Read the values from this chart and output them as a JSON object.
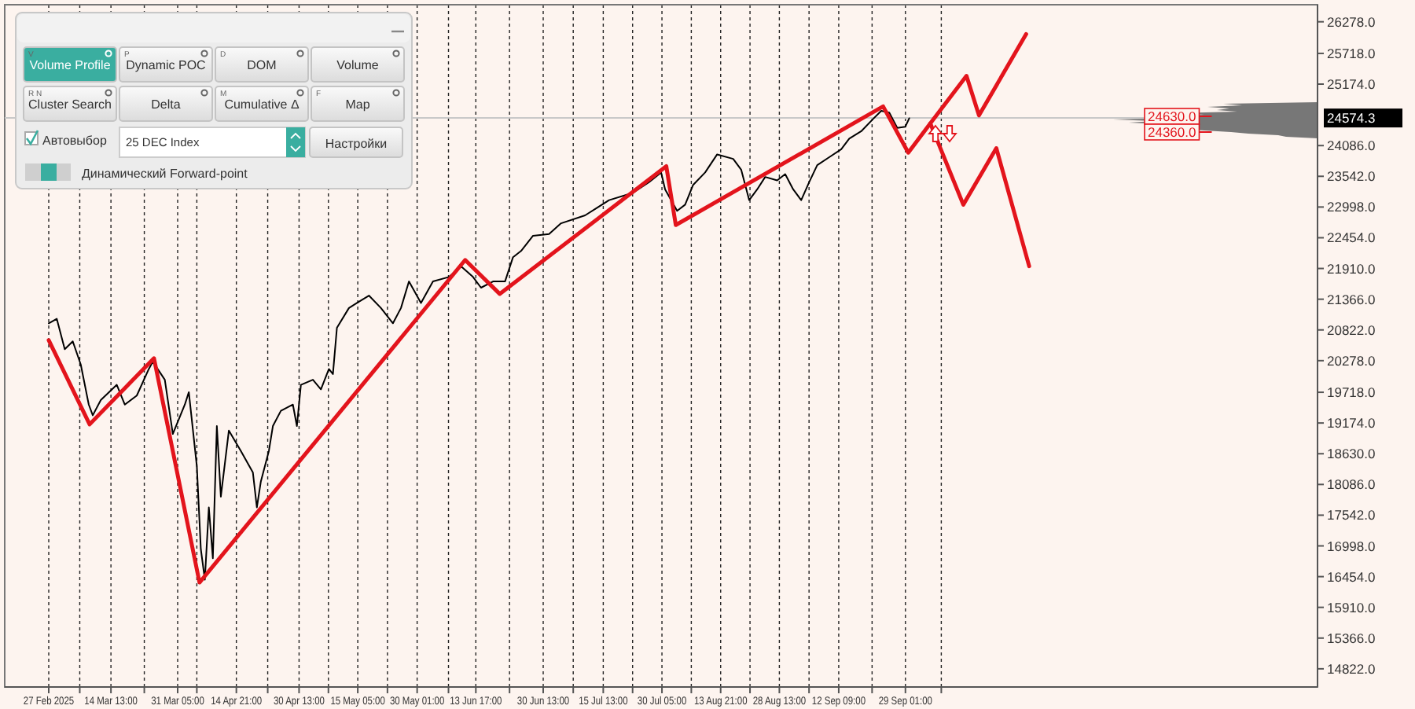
{
  "chart_data": {
    "type": "line",
    "xlim": [
      "2025-02-16",
      "2026-01-10"
    ],
    "ylim": [
      14500,
      26580
    ],
    "xticks": [
      {
        "value": "2025-02-27",
        "label": "27 Feb 2025"
      },
      {
        "value": "2025-03-06T18:00",
        "label": null
      },
      {
        "value": "2025-03-14T13:00",
        "label": "14 Mar 13:00"
      },
      {
        "value": "2025-03-22T21:00",
        "label": null
      },
      {
        "value": "2025-03-31T05:00",
        "label": "31 Mar 05:00"
      },
      {
        "value": "2025-04-05T00:00",
        "label": null
      },
      {
        "value": "2025-04-14T21:00",
        "label": "14 Apr 21:00"
      },
      {
        "value": "2025-04-22T17:00",
        "label": null
      },
      {
        "value": "2025-04-30T13:00",
        "label": "30 Apr 13:00"
      },
      {
        "value": "2025-05-07T21:00",
        "label": null
      },
      {
        "value": "2025-05-15T05:00",
        "label": "15 May 05:00"
      },
      {
        "value": "2025-05-22T15:00",
        "label": null
      },
      {
        "value": "2025-05-30T01:00",
        "label": "30 May 01:00"
      },
      {
        "value": "2025-06-06T21:00",
        "label": null
      },
      {
        "value": "2025-06-13T17:00",
        "label": "13 Jun 17:00"
      },
      {
        "value": "2025-06-22T03:00",
        "label": null
      },
      {
        "value": "2025-06-30T13:00",
        "label": "30 Jun 13:00"
      },
      {
        "value": "2025-07-08T01:00",
        "label": null
      },
      {
        "value": "2025-07-15T13:00",
        "label": "15 Jul 13:00"
      },
      {
        "value": "2025-07-22T21:00",
        "label": null
      },
      {
        "value": "2025-07-30T05:00",
        "label": "30 Jul 05:00"
      },
      {
        "value": "2025-08-06T13:00",
        "label": null
      },
      {
        "value": "2025-08-13T21:00",
        "label": "13 Aug 21:00"
      },
      {
        "value": "2025-08-21T05:00",
        "label": null
      },
      {
        "value": "2025-08-28T13:00",
        "label": "28 Aug 13:00"
      },
      {
        "value": "2025-09-04T23:00",
        "label": null
      },
      {
        "value": "2025-09-12T09:00",
        "label": "12 Sep 09:00"
      },
      {
        "value": "2025-09-20T17:00",
        "label": null
      },
      {
        "value": "2025-09-29T01:00",
        "label": "29 Sep 01:00"
      },
      {
        "value": "2025-10-08",
        "label": null
      }
    ],
    "yticks": [
      {
        "value": 14822,
        "label": "14822.0"
      },
      {
        "value": 15366,
        "label": "15366.0"
      },
      {
        "value": 15910,
        "label": "15910.0"
      },
      {
        "value": 16454,
        "label": "16454.0"
      },
      {
        "value": 16998,
        "label": "16998.0"
      },
      {
        "value": 17542,
        "label": "17542.0"
      },
      {
        "value": 18086,
        "label": "18086.0"
      },
      {
        "value": 18630,
        "label": "18630.0"
      },
      {
        "value": 19174,
        "label": "19174.0"
      },
      {
        "value": 19718,
        "label": "19718.0"
      },
      {
        "value": 20278,
        "label": "20278.0"
      },
      {
        "value": 20822,
        "label": "20822.0"
      },
      {
        "value": 21366,
        "label": "21366.0"
      },
      {
        "value": 21910,
        "label": "21910.0"
      },
      {
        "value": 22454,
        "label": "22454.0"
      },
      {
        "value": 22998,
        "label": "22998.0"
      },
      {
        "value": 23542,
        "label": "23542.0"
      },
      {
        "value": 24086,
        "label": "24086.0"
      },
      {
        "value": 25174,
        "label": "25174.0"
      },
      {
        "value": 25718,
        "label": "25718.0"
      },
      {
        "value": 26278,
        "label": "26278.0"
      }
    ],
    "grid": "x",
    "marker": "none",
    "line_style": "solid",
    "series": [
      {
        "color": "#000000",
        "x": [
          "2025-02-27",
          "2025-03-01",
          "2025-03-03",
          "2025-03-05",
          "2025-03-07",
          "2025-03-09",
          "2025-03-10",
          "2025-03-12",
          "2025-03-16",
          "2025-03-18",
          "2025-03-21",
          "2025-03-24",
          "2025-03-25",
          "2025-03-28",
          "2025-03-30",
          "2025-04-02",
          "2025-04-03",
          "2025-04-05",
          "2025-04-06",
          "2025-04-07",
          "2025-04-08",
          "2025-04-09",
          "2025-04-10",
          "2025-04-11",
          "2025-04-13",
          "2025-04-16",
          "2025-04-19",
          "2025-04-20",
          "2025-04-21",
          "2025-04-23",
          "2025-04-24",
          "2025-04-26",
          "2025-04-29",
          "2025-04-30",
          "2025-05-01",
          "2025-05-04",
          "2025-05-06",
          "2025-05-08",
          "2025-05-09",
          "2025-05-10",
          "2025-05-13",
          "2025-05-15",
          "2025-05-18",
          "2025-05-21",
          "2025-05-24",
          "2025-05-26",
          "2025-05-28",
          "2025-05-31",
          "2025-06-03",
          "2025-06-07",
          "2025-06-10",
          "2025-06-13",
          "2025-06-15",
          "2025-06-18",
          "2025-06-21",
          "2025-06-23",
          "2025-06-25",
          "2025-06-28",
          "2025-07-02",
          "2025-07-05",
          "2025-07-11",
          "2025-07-17",
          "2025-07-23",
          "2025-07-27",
          "2025-07-30",
          "2025-07-31",
          "2025-08-03",
          "2025-08-05",
          "2025-08-07",
          "2025-08-10",
          "2025-08-13",
          "2025-08-17",
          "2025-08-19",
          "2025-08-21",
          "2025-08-23",
          "2025-08-25",
          "2025-08-28",
          "2025-08-30",
          "2025-09-01",
          "2025-09-03",
          "2025-09-05",
          "2025-09-07",
          "2025-09-10",
          "2025-09-13",
          "2025-09-15",
          "2025-09-18",
          "2025-09-21",
          "2025-09-23",
          "2025-09-25",
          "2025-09-27",
          "2025-09-29",
          "2025-09-30"
        ],
        "values": [
          20940,
          21020,
          20480,
          20620,
          20210,
          19500,
          19310,
          19580,
          19850,
          19500,
          19660,
          20130,
          20260,
          19940,
          18980,
          19500,
          19720,
          18410,
          16940,
          16400,
          17680,
          16780,
          19120,
          17870,
          19040,
          18680,
          18300,
          17680,
          18140,
          18680,
          19120,
          19390,
          19500,
          19120,
          19850,
          19940,
          19770,
          20130,
          20040,
          20860,
          21210,
          21300,
          21430,
          21210,
          20940,
          21210,
          21680,
          21300,
          21680,
          21760,
          21950,
          21760,
          21570,
          21680,
          21680,
          22110,
          22220,
          22490,
          22520,
          22710,
          22850,
          23120,
          23250,
          23440,
          23610,
          23310,
          22930,
          23040,
          23390,
          23610,
          23930,
          23850,
          23660,
          23120,
          23310,
          23530,
          23470,
          23580,
          23310,
          23120,
          23440,
          23740,
          23880,
          24020,
          24210,
          24340,
          24560,
          24700,
          24670,
          24400,
          24420,
          24570
        ]
      },
      {
        "color": "#e3141c",
        "x": [
          "2025-02-27",
          "2025-03-09T05:00",
          "2025-03-25T07:00",
          "2025-04-05T16:00",
          "2025-06-11T01:00",
          "2025-06-19T16:00",
          "2025-07-31T07:00",
          "2025-08-02T16:00",
          "2025-09-23T11:00",
          "2025-09-29T18:00",
          "2025-10-05T06:00",
          "2025-10-14T07:00",
          "2025-10-17T10:00",
          "2025-10-29T05:00",
          null,
          "2025-10-05T06:00",
          "2025-10-13T12:00",
          "2025-10-21T18:00",
          "2025-10-29T23:00"
        ],
        "values": [
          20640,
          19150,
          20320,
          16350,
          22060,
          21460,
          23720,
          22680,
          24780,
          23960,
          24480,
          25320,
          24620,
          26060,
          null,
          24480,
          23040,
          24040,
          21950
        ]
      }
    ],
    "ref_lines": [
      {
        "axis": "y",
        "value": 24574.3,
        "label": "24574.3",
        "color": "#c8c8c8"
      }
    ],
    "annotations": [
      "24630.0",
      "24360.0",
      "Volume Profile",
      "Dynamic POC",
      "DOM",
      "Volume",
      "Cluster Search",
      "Delta",
      "Cumulative Δ",
      "Map",
      "V",
      "P",
      "D",
      "R  N",
      "M",
      "F",
      "Автовыбор",
      "25 DEC Index",
      "Настройки",
      "Динамический Forward-point"
    ]
  }
}
